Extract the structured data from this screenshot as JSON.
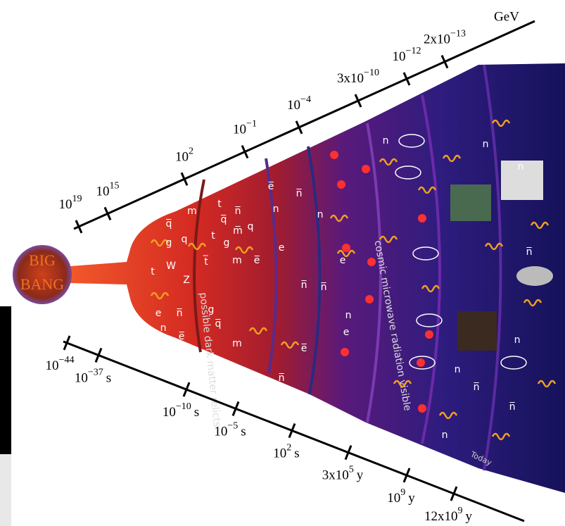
{
  "energy_axis": {
    "unit": "GeV",
    "ticks": [
      {
        "base": "10",
        "exp": "19"
      },
      {
        "base": "10",
        "exp": "15"
      },
      {
        "base": "10",
        "exp": "2"
      },
      {
        "base": "10",
        "exp": "−1"
      },
      {
        "base": "10",
        "exp": "−4"
      },
      {
        "base": "3x10",
        "exp": "−10"
      },
      {
        "base": "10",
        "exp": "−12"
      },
      {
        "base": "2x10",
        "exp": "−13"
      }
    ]
  },
  "time_axis": {
    "ticks": [
      {
        "base": "10",
        "exp": "−44"
      },
      {
        "base": "10",
        "exp": "−37",
        "unit": "s"
      },
      {
        "base": "10",
        "exp": "−10",
        "unit": "s"
      },
      {
        "base": "10",
        "exp": "−5",
        "unit": "s"
      },
      {
        "base": "10",
        "exp": "2",
        "unit": "s"
      },
      {
        "base": "3x10",
        "exp": "5",
        "unit": "y"
      },
      {
        "base": "10",
        "exp": "9",
        "unit": "y"
      },
      {
        "base": "12x10",
        "exp": "9",
        "unit": "y"
      }
    ]
  },
  "big_bang": {
    "line1": "BIG",
    "line2": "BANG"
  },
  "eras": {
    "dark_matter": "possible dark matter relicts",
    "cmb": "cosmic microwave radiation visible",
    "today": "Today"
  },
  "particles": [
    "q̅",
    "m",
    "t",
    "n̅",
    "e̅",
    "n̅",
    "g",
    "q",
    "q̅",
    "m̅",
    "q",
    "g",
    "t",
    "n",
    "n",
    "W",
    "Z",
    "t",
    "e",
    "n̅",
    "t̅",
    "m",
    "e̅",
    "m",
    "n",
    "e̅",
    "n̅",
    "e",
    "n",
    "e",
    "n̅",
    "n̅",
    "e̅",
    "n",
    "n",
    "n",
    "n̅",
    "n",
    "n̅",
    "n",
    "n",
    "n̅",
    "q̅",
    "g",
    "e"
  ]
}
